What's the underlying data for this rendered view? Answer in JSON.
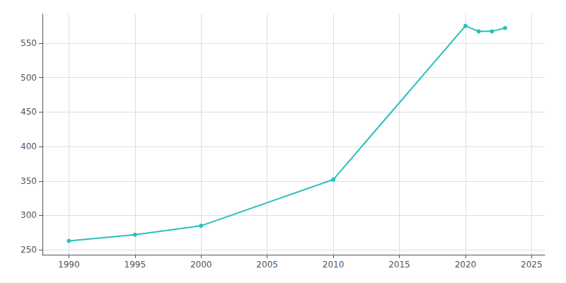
{
  "chart_data": {
    "type": "line",
    "x": [
      1990,
      1995,
      2000,
      2010,
      2020,
      2021,
      2022,
      2023
    ],
    "values": [
      263,
      272,
      285,
      352,
      575,
      567,
      567,
      572
    ],
    "color": "#29bfbf",
    "marker": "circle",
    "xlim": [
      1988,
      2026
    ],
    "ylim": [
      243,
      592
    ],
    "xticks": [
      1990,
      1995,
      2000,
      2005,
      2010,
      2015,
      2020,
      2025
    ],
    "yticks": [
      250,
      300,
      350,
      400,
      450,
      500,
      550
    ],
    "grid": true
  }
}
